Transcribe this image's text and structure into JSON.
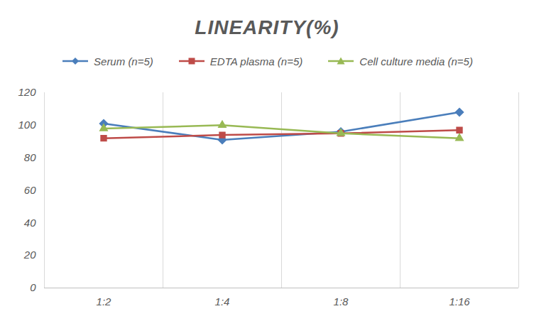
{
  "chart_data": {
    "type": "line",
    "title": "LINEARITY(%)",
    "categories": [
      "1:2",
      "1:4",
      "1:8",
      "1:16"
    ],
    "series": [
      {
        "name": "Serum (n=5)",
        "color": "#4a7ebb",
        "marker": "diamond",
        "values": [
          101,
          91,
          96,
          108
        ]
      },
      {
        "name": "EDTA plasma (n=5)",
        "color": "#be4b48",
        "marker": "square",
        "values": [
          92,
          94,
          95,
          97
        ]
      },
      {
        "name": "Cell culture media (n=5)",
        "color": "#98b954",
        "marker": "triangle",
        "values": [
          98,
          100,
          95,
          92
        ]
      }
    ],
    "ylim": [
      0,
      120
    ],
    "yticks": [
      0,
      20,
      40,
      60,
      80,
      100,
      120
    ],
    "grid": true,
    "legend": "top"
  }
}
